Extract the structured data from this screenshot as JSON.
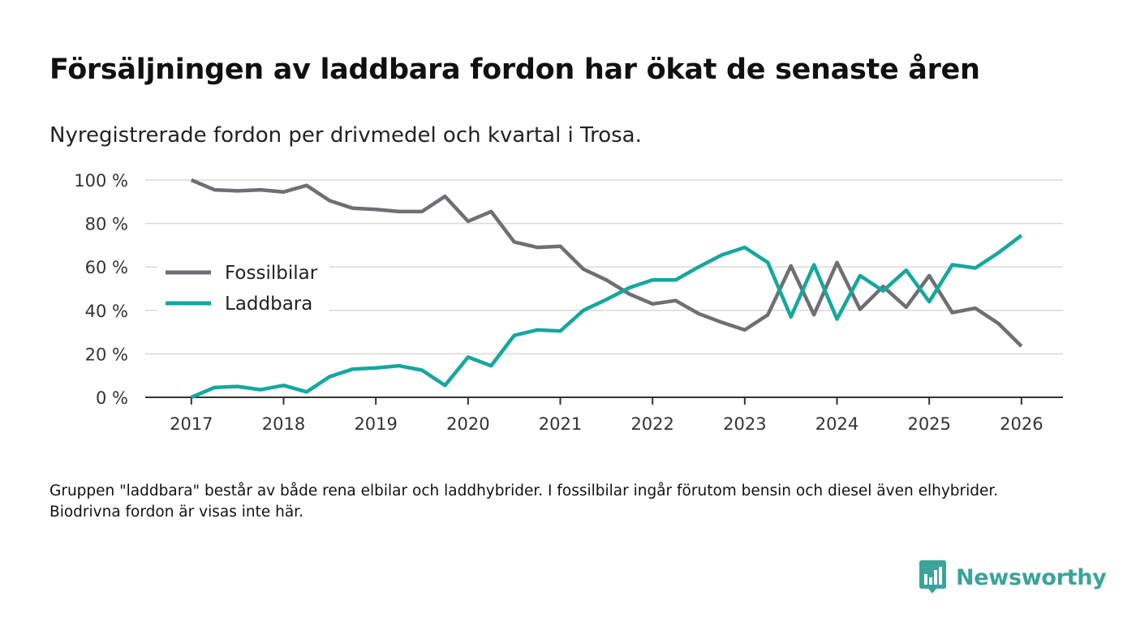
{
  "title": "Försäljningen av laddbara fordon har ökat de senaste åren",
  "subtitle": "Nyregistrerade fordon per drivmedel och kvartal i Trosa.",
  "footnote": "Gruppen \"laddbara\" består av både rena elbilar och laddhybrider. I fossilbilar ingår förutom bensin och diesel även elhybrider. Biodrivna fordon är visas inte här.",
  "brand": {
    "name": "Newsworthy",
    "logo_icon": "bar-chart-speech-bubble-icon",
    "color": "#3aa39a"
  },
  "chart_data": {
    "type": "line",
    "title": "Försäljningen av laddbara fordon har ökat de senaste åren",
    "xlabel": "",
    "ylabel": "",
    "x": [
      2017.0,
      2017.25,
      2017.5,
      2017.75,
      2018.0,
      2018.25,
      2018.5,
      2018.75,
      2019.0,
      2019.25,
      2019.5,
      2019.75,
      2020.0,
      2020.25,
      2020.5,
      2020.75,
      2021.0,
      2021.25,
      2021.5,
      2021.75,
      2022.0,
      2022.25,
      2022.5,
      2022.75,
      2023.0,
      2023.25,
      2023.5,
      2023.75,
      2024.0,
      2024.25,
      2024.5,
      2024.75,
      2025.0,
      2025.25,
      2025.5,
      2025.75,
      2026.0
    ],
    "xlim": [
      2016.5,
      2026.45
    ],
    "ylim": [
      0,
      100
    ],
    "xticks": [
      2017,
      2018,
      2019,
      2020,
      2021,
      2022,
      2023,
      2024,
      2025,
      2026
    ],
    "xtick_labels": [
      "2017",
      "2018",
      "2019",
      "2020",
      "2021",
      "2022",
      "2023",
      "2024",
      "2025",
      "2026"
    ],
    "yticks": [
      0,
      20,
      40,
      60,
      80,
      100
    ],
    "ytick_labels": [
      "0 %",
      "20 %",
      "40 %",
      "60 %",
      "80 %",
      "100 %"
    ],
    "grid": true,
    "legend": "left",
    "series": [
      {
        "name": "Fossilbilar",
        "color": "#6e6e74",
        "values": [
          100,
          95.5,
          95,
          95.5,
          94.5,
          97.5,
          90.5,
          87,
          86.5,
          85.5,
          85.5,
          92.5,
          81,
          85.5,
          71.5,
          69,
          69.5,
          59,
          54,
          47.5,
          43,
          44.5,
          38.5,
          34.5,
          31,
          38,
          60.5,
          38,
          62,
          40.5,
          51,
          41.5,
          56,
          39,
          41,
          34,
          23.5
        ]
      },
      {
        "name": "Laddbara",
        "color": "#13a89e",
        "values": [
          0,
          4.5,
          5,
          3.5,
          5.5,
          2.5,
          9.5,
          13,
          13.5,
          14.5,
          12.5,
          5.5,
          18.5,
          14.5,
          28.5,
          31,
          30.5,
          40,
          45,
          50.5,
          54,
          54,
          60,
          65.5,
          69,
          62,
          37,
          61,
          36,
          56,
          49,
          58.5,
          44,
          61,
          59.5,
          66.5,
          74.5
        ]
      }
    ]
  }
}
